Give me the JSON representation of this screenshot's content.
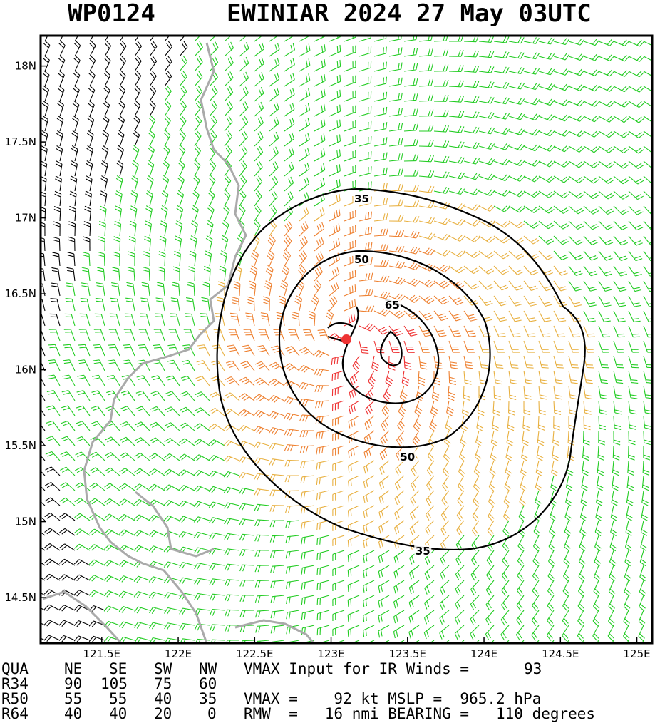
{
  "title": {
    "storm_id": "WP0124",
    "storm_info": "EWINIAR 2024 27 May 03UTC"
  },
  "map": {
    "lat_range": [
      14.2,
      18.2
    ],
    "lon_range": [
      121.1,
      125.1
    ],
    "lat_ticks": [
      {
        "value": 18.0,
        "label": "18N"
      },
      {
        "value": 17.5,
        "label": "17.5N"
      },
      {
        "value": 17.0,
        "label": "17N"
      },
      {
        "value": 16.5,
        "label": "16.5N"
      },
      {
        "value": 16.0,
        "label": "16N"
      },
      {
        "value": 15.5,
        "label": "15.5N"
      },
      {
        "value": 15.0,
        "label": "15N"
      },
      {
        "value": 14.5,
        "label": "14.5N"
      }
    ],
    "lon_ticks": [
      {
        "value": 121.5,
        "label": "121.5E"
      },
      {
        "value": 122.0,
        "label": "122E"
      },
      {
        "value": 122.5,
        "label": "122.5E"
      },
      {
        "value": 123.0,
        "label": "123E"
      },
      {
        "value": 123.5,
        "label": "123.5E"
      },
      {
        "value": 124.0,
        "label": "124E"
      },
      {
        "value": 124.5,
        "label": "124.5E"
      },
      {
        "value": 125.0,
        "label": "125E"
      }
    ],
    "center": {
      "lat": 16.2,
      "lon": 123.1
    },
    "contour_labels": [
      {
        "text": "35",
        "lat": 17.12,
        "lon": 123.2
      },
      {
        "text": "50",
        "lat": 16.72,
        "lon": 123.2
      },
      {
        "text": "65",
        "lat": 16.42,
        "lon": 123.4
      },
      {
        "text": "50",
        "lat": 15.42,
        "lon": 123.5
      },
      {
        "text": "35",
        "lat": 14.8,
        "lon": 123.6
      }
    ],
    "wind_colors": {
      "land_black": "#000000",
      "green": "#22cc22",
      "yellow": "#e8b040",
      "orange": "#ee8030",
      "red": "#ee3030"
    },
    "center_marker_color": "#ee3333",
    "coast_color": "#aaaaaa"
  },
  "footer": {
    "header": [
      "QUA",
      "NE",
      "SE",
      "SW",
      "NW"
    ],
    "rows": [
      {
        "label": "R34",
        "values": [
          "90",
          "105",
          "75",
          "60"
        ]
      },
      {
        "label": "R50",
        "values": [
          "55",
          "55",
          "40",
          "35"
        ]
      },
      {
        "label": "R64",
        "values": [
          "40",
          "40",
          "20",
          "0"
        ]
      }
    ],
    "vmax_input_label": "VMAX Input for IR Winds =",
    "vmax_input_value": "93",
    "vmax_line": "VMAX =    92 kt MSLP =  965.2 hPa",
    "rmw_line": "RMW  =   16 nmi BEARING =   110 degrees"
  }
}
